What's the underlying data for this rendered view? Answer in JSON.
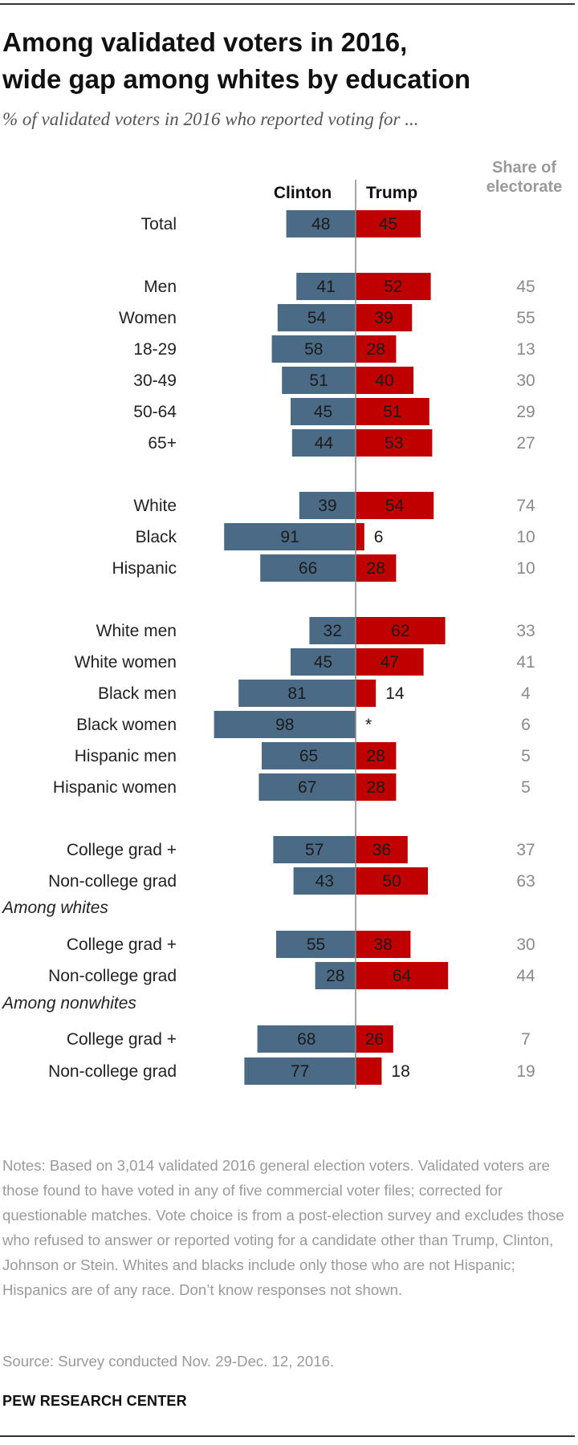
{
  "title_line1": "Among validated voters in 2016,",
  "title_line2": "wide gap among whites by education",
  "subtitle": "% of validated voters in 2016 who reported voting for ...",
  "colors": {
    "clinton": "#4a6a86",
    "trump": "#c00000",
    "share": "#8a8a8a",
    "divider": "#888888"
  },
  "chart_data": {
    "type": "bar",
    "orientation": "horizontal-diverging",
    "series": [
      {
        "name": "Clinton",
        "direction": "left",
        "color": "#4a6a86"
      },
      {
        "name": "Trump",
        "direction": "right",
        "color": "#c00000"
      }
    ],
    "share_column_label_line1": "Share of",
    "share_column_label_line2": "electorate",
    "section_labels": [
      "Among whites",
      "Among nonwhites"
    ],
    "rows": [
      {
        "label": "Total",
        "clinton": 48,
        "trump": 45,
        "share": ""
      },
      {
        "label": "Men",
        "clinton": 41,
        "trump": 52,
        "share": "45"
      },
      {
        "label": "Women",
        "clinton": 54,
        "trump": 39,
        "share": "55"
      },
      {
        "label": "18-29",
        "clinton": 58,
        "trump": 28,
        "share": "13"
      },
      {
        "label": "30-49",
        "clinton": 51,
        "trump": 40,
        "share": "30"
      },
      {
        "label": "50-64",
        "clinton": 45,
        "trump": 51,
        "share": "29"
      },
      {
        "label": "65+",
        "clinton": 44,
        "trump": 53,
        "share": "27"
      },
      {
        "label": "White",
        "clinton": 39,
        "trump": 54,
        "share": "74"
      },
      {
        "label": "Black",
        "clinton": 91,
        "trump": 6,
        "share": "10"
      },
      {
        "label": "Hispanic",
        "clinton": 66,
        "trump": 28,
        "share": "10"
      },
      {
        "label": "White men",
        "clinton": 32,
        "trump": 62,
        "share": "33"
      },
      {
        "label": "White women",
        "clinton": 45,
        "trump": 47,
        "share": "41"
      },
      {
        "label": "Black men",
        "clinton": 81,
        "trump": 14,
        "share": "4"
      },
      {
        "label": "Black women",
        "clinton": 98,
        "trump": 0,
        "trump_label": "*",
        "share": "6"
      },
      {
        "label": "Hispanic men",
        "clinton": 65,
        "trump": 28,
        "share": "5"
      },
      {
        "label": "Hispanic women",
        "clinton": 67,
        "trump": 28,
        "share": "5"
      },
      {
        "label": "College grad +",
        "clinton": 57,
        "trump": 36,
        "share": "37"
      },
      {
        "label": "Non-college grad",
        "clinton": 43,
        "trump": 50,
        "share": "63"
      },
      {
        "label": "College grad +",
        "clinton": 55,
        "trump": 38,
        "share": "30"
      },
      {
        "label": "Non-college grad",
        "clinton": 28,
        "trump": 64,
        "share": "44"
      },
      {
        "label": "College grad +",
        "clinton": 68,
        "trump": 26,
        "share": "7"
      },
      {
        "label": "Non-college grad",
        "clinton": 77,
        "trump": 18,
        "share": "19"
      }
    ]
  },
  "notes": "Notes: Based on 3,014 validated 2016 general election voters. Validated voters are those found to have voted in any of five commercial voter files; corrected for questionable matches. Vote choice is from a post-election survey and excludes those who refused to answer or reported voting for a candidate other than Trump, Clinton, Johnson or Stein. Whites and blacks include only those who are not Hispanic; Hispanics are of any race. Don’t know responses not shown.",
  "source": "Source: Survey conducted Nov. 29-Dec. 12, 2016.",
  "org": "PEW RESEARCH CENTER"
}
